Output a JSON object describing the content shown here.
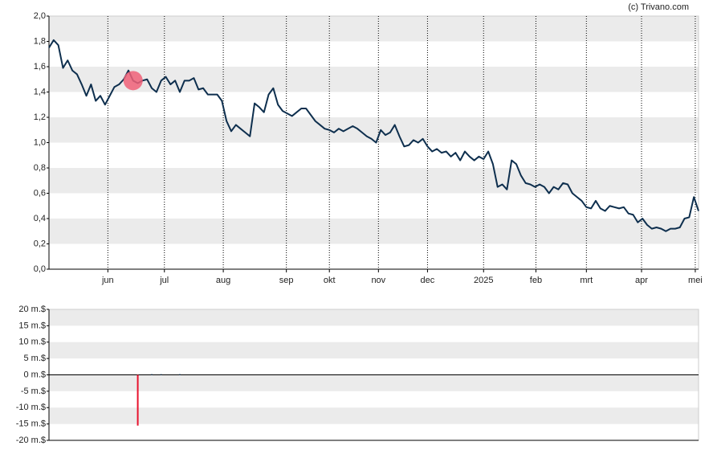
{
  "chart_data": [
    {
      "type": "line",
      "source": "(c) Trivano.com",
      "color": "#0e2f4e",
      "grid": "bands",
      "band_color": "#ebebeb",
      "marker": {
        "index": 18,
        "color": "#f06078"
      },
      "xlim": [
        0,
        139
      ],
      "xticks": [
        {
          "value": 12.6,
          "label": "jun"
        },
        {
          "value": 24.7,
          "label": "jul"
        },
        {
          "value": 37.3,
          "label": "aug"
        },
        {
          "value": 50.8,
          "label": "sep"
        },
        {
          "value": 60,
          "label": "okt"
        },
        {
          "value": 70.5,
          "label": "nov"
        },
        {
          "value": 81,
          "label": "dec"
        },
        {
          "value": 93,
          "label": "2025"
        },
        {
          "value": 104.2,
          "label": "feb"
        },
        {
          "value": 115,
          "label": "mrt"
        },
        {
          "value": 126.8,
          "label": "apr"
        },
        {
          "value": 138.3,
          "label": "mei"
        }
      ],
      "ylim": [
        0,
        2
      ],
      "yticks": [
        {
          "value": 0,
          "label": "0,0"
        },
        {
          "value": 0.2,
          "label": "0,2"
        },
        {
          "value": 0.4,
          "label": "0,4"
        },
        {
          "value": 0.6,
          "label": "0,6"
        },
        {
          "value": 0.8,
          "label": "0,8"
        },
        {
          "value": 1,
          "label": "1,0"
        },
        {
          "value": 1.2,
          "label": "1,2"
        },
        {
          "value": 1.4,
          "label": "1,4"
        },
        {
          "value": 1.6,
          "label": "1,6"
        },
        {
          "value": 1.8,
          "label": "1,8"
        },
        {
          "value": 2,
          "label": "2,0"
        }
      ],
      "values": [
        1.75,
        1.81,
        1.77,
        1.59,
        1.65,
        1.57,
        1.54,
        1.46,
        1.37,
        1.46,
        1.33,
        1.37,
        1.3,
        1.37,
        1.44,
        1.46,
        1.5,
        1.57,
        1.49,
        1.47,
        1.49,
        1.5,
        1.43,
        1.4,
        1.49,
        1.52,
        1.46,
        1.49,
        1.4,
        1.49,
        1.49,
        1.51,
        1.42,
        1.43,
        1.38,
        1.38,
        1.38,
        1.33,
        1.17,
        1.09,
        1.14,
        1.11,
        1.08,
        1.05,
        1.31,
        1.28,
        1.24,
        1.38,
        1.43,
        1.3,
        1.25,
        1.23,
        1.21,
        1.24,
        1.27,
        1.27,
        1.22,
        1.17,
        1.14,
        1.11,
        1.1,
        1.08,
        1.11,
        1.09,
        1.11,
        1.13,
        1.11,
        1.08,
        1.05,
        1.03,
        1.0,
        1.1,
        1.06,
        1.08,
        1.14,
        1.05,
        0.97,
        0.98,
        1.02,
        1.0,
        1.03,
        0.97,
        0.93,
        0.95,
        0.92,
        0.93,
        0.89,
        0.92,
        0.86,
        0.93,
        0.89,
        0.86,
        0.89,
        0.87,
        0.93,
        0.83,
        0.65,
        0.67,
        0.63,
        0.86,
        0.83,
        0.74,
        0.68,
        0.67,
        0.65,
        0.67,
        0.65,
        0.6,
        0.65,
        0.63,
        0.68,
        0.67,
        0.6,
        0.57,
        0.54,
        0.49,
        0.48,
        0.54,
        0.48,
        0.46,
        0.5,
        0.49,
        0.48,
        0.49,
        0.44,
        0.43,
        0.37,
        0.4,
        0.35,
        0.32,
        0.33,
        0.32,
        0.3,
        0.32,
        0.32,
        0.33,
        0.4,
        0.41,
        0.57,
        0.46
      ]
    },
    {
      "type": "bar",
      "grid": "bands",
      "band_color": "#ebebeb",
      "xlim": [
        0,
        139
      ],
      "ylim": [
        -20,
        20
      ],
      "yticks": [
        {
          "value": -20,
          "label": "-20 m.$"
        },
        {
          "value": -15,
          "label": "-15 m.$"
        },
        {
          "value": -10,
          "label": "-10 m.$"
        },
        {
          "value": -5,
          "label": "-5 m.$"
        },
        {
          "value": 0,
          "label": "0 m.$"
        },
        {
          "value": 5,
          "label": "5 m.$"
        },
        {
          "value": 10,
          "label": "10 m.$"
        },
        {
          "value": 15,
          "label": "15 m.$"
        },
        {
          "value": 20,
          "label": "20 m.$"
        }
      ],
      "x": [
        19,
        22,
        24,
        28
      ],
      "values": [
        -15.5,
        0.2,
        0.2,
        0.2
      ],
      "colors": [
        "#e8112d",
        "#0e2f4e",
        "#0e2f4e",
        "#0e2f4e"
      ]
    }
  ]
}
